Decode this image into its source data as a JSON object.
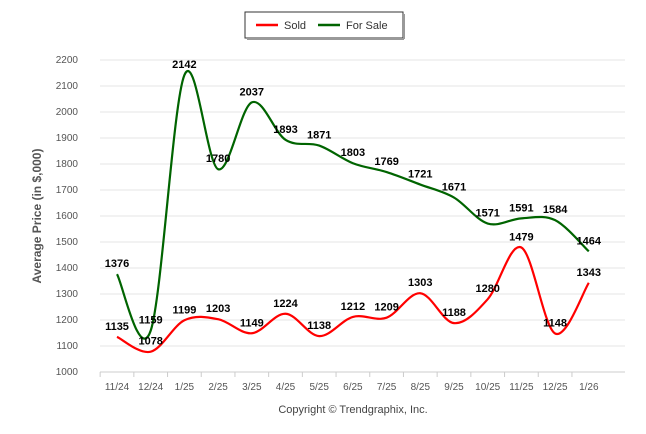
{
  "chart_data": {
    "type": "line",
    "title": "",
    "xlabel": "",
    "ylabel": "Average Price (in $,000)",
    "ylim": [
      1000,
      2200
    ],
    "yticks": [
      1000,
      1100,
      1200,
      1300,
      1400,
      1500,
      1600,
      1700,
      1800,
      1900,
      2000,
      2100,
      2200
    ],
    "grid": true,
    "legend_position": "top-center",
    "categories": [
      "11/24",
      "12/24",
      "1/25",
      "2/25",
      "3/25",
      "4/25",
      "5/25",
      "6/25",
      "7/25",
      "8/25",
      "9/25",
      "10/25",
      "11/25",
      "12/25",
      "1/26"
    ],
    "series": [
      {
        "name": "Sold",
        "color": "#ff0000",
        "values": [
          1135,
          1078,
          1199,
          1203,
          1149,
          1224,
          1138,
          1212,
          1209,
          1303,
          1188,
          1280,
          1479,
          1148,
          1343
        ]
      },
      {
        "name": "For Sale",
        "color": "#006400",
        "values": [
          1376,
          1159,
          2142,
          1780,
          2037,
          1893,
          1871,
          1803,
          1769,
          1721,
          1671,
          1571,
          1591,
          1584,
          1464
        ]
      }
    ],
    "footer": "Copyright © Trendgraphix, Inc."
  }
}
